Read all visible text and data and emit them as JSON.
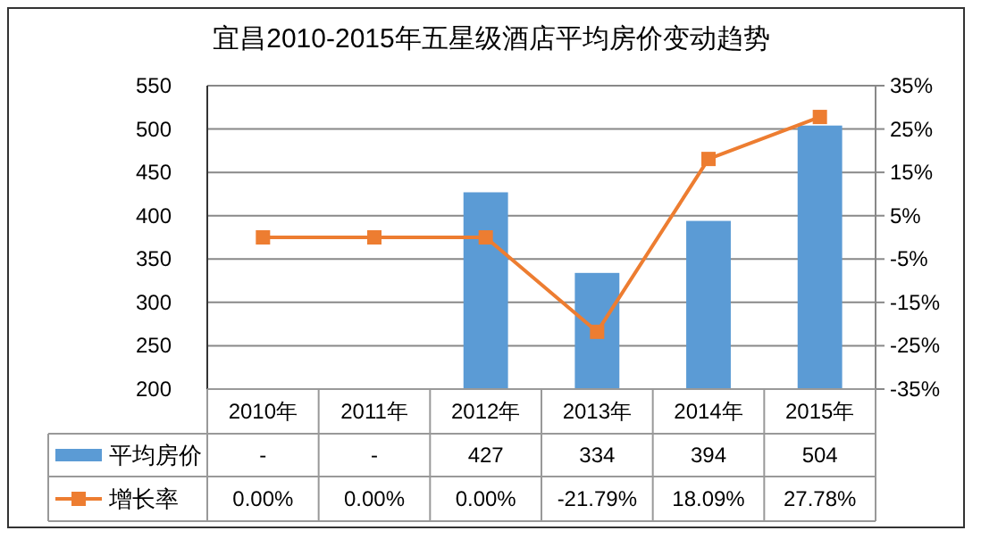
{
  "chart_data": {
    "type": "bar",
    "title": "宜昌2010-2015年五星级酒店平均房价变动趋势",
    "categories": [
      "2010年",
      "2011年",
      "2012年",
      "2013年",
      "2014年",
      "2015年"
    ],
    "series": [
      {
        "name": "平均房价",
        "color": "#5b9bd5",
        "values": [
          null,
          null,
          427,
          334,
          394,
          504
        ],
        "value_labels": [
          "-",
          "-",
          "427",
          "334",
          "394",
          "504"
        ]
      },
      {
        "name": "增长率",
        "type": "line",
        "axis": "y2",
        "color": "#ed7d31",
        "marker": "square",
        "values": [
          0,
          0,
          0,
          -21.79,
          18.09,
          27.78
        ],
        "value_labels": [
          "0.00%",
          "0.00%",
          "0.00%",
          "-21.79%",
          "18.09%",
          "27.78%"
        ]
      }
    ],
    "ylim": [
      200,
      550
    ],
    "yticks": [
      200,
      250,
      300,
      350,
      400,
      450,
      500,
      550
    ],
    "y2lim": [
      -35,
      35
    ],
    "y2ticks": [
      {
        "value": -35,
        "label": "-35%"
      },
      {
        "value": -25,
        "label": "-25%"
      },
      {
        "value": -15,
        "label": "-15%"
      },
      {
        "value": -5,
        "label": "-5%"
      },
      {
        "value": 5,
        "label": "5%"
      },
      {
        "value": 15,
        "label": "15%"
      },
      {
        "value": 25,
        "label": "25%"
      },
      {
        "value": 35,
        "label": "35%"
      }
    ],
    "grid": "y",
    "legend": "bottom"
  }
}
